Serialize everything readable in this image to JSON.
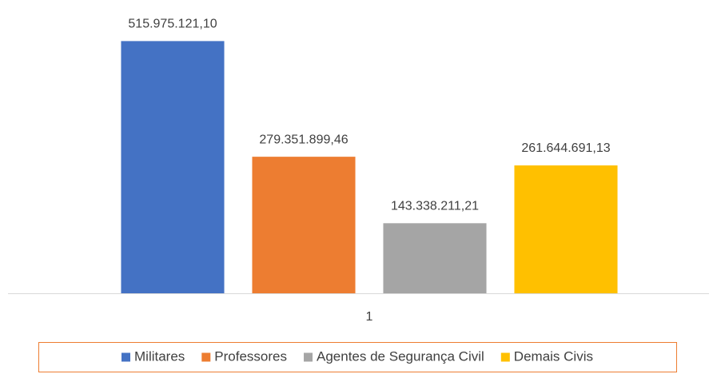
{
  "chart_data": {
    "type": "bar",
    "categories": [
      "1"
    ],
    "series": [
      {
        "name": "Militares",
        "color": "#4472c4",
        "values": [
          515975121.1
        ],
        "value_labels": [
          "515.975.121,10"
        ]
      },
      {
        "name": "Professores",
        "color": "#ed7d31",
        "values": [
          279351899.46
        ],
        "value_labels": [
          "279.351.899,46"
        ]
      },
      {
        "name": "Agentes de Segurança Civil",
        "color": "#a5a5a5",
        "values": [
          143338211.21
        ],
        "value_labels": [
          "143.338.211,21"
        ]
      },
      {
        "name": "Demais Civis",
        "color": "#ffc000",
        "values": [
          261644691.13
        ],
        "value_labels": [
          "261.644.691,13"
        ]
      }
    ],
    "ylim": [
      0,
      600000000
    ],
    "legend": "bottom"
  }
}
